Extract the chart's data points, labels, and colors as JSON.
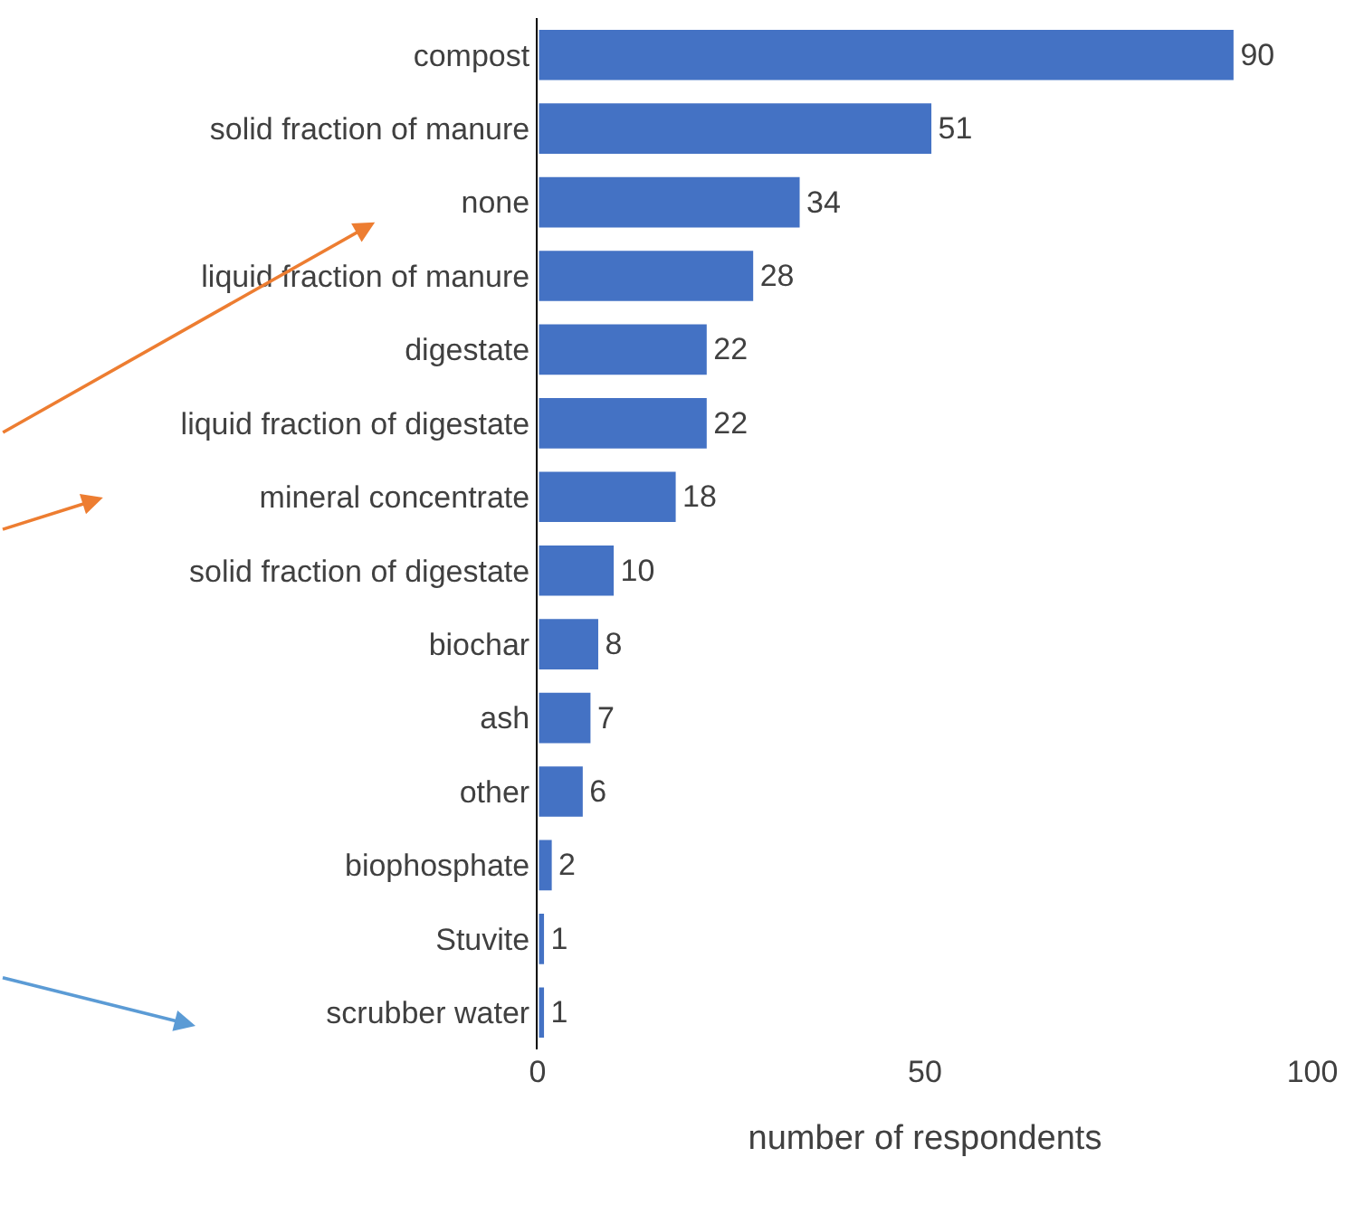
{
  "chart_data": {
    "type": "bar",
    "orientation": "horizontal",
    "categories": [
      "compost",
      "solid fraction of manure",
      "none",
      "liquid fraction of manure",
      "digestate",
      "liquid fraction of digestate",
      "mineral concentrate",
      "solid fraction of digestate",
      "biochar",
      "ash",
      "other",
      "biophosphate",
      "Stuvite",
      "scrubber water"
    ],
    "values": [
      90,
      51,
      34,
      28,
      22,
      22,
      18,
      10,
      8,
      7,
      6,
      2,
      1,
      1
    ],
    "color": "#4472c4",
    "xlim": [
      0,
      100
    ],
    "xticks": [
      0,
      50,
      100
    ],
    "xlabel": "number of respondents",
    "data_labels": true
  }
}
